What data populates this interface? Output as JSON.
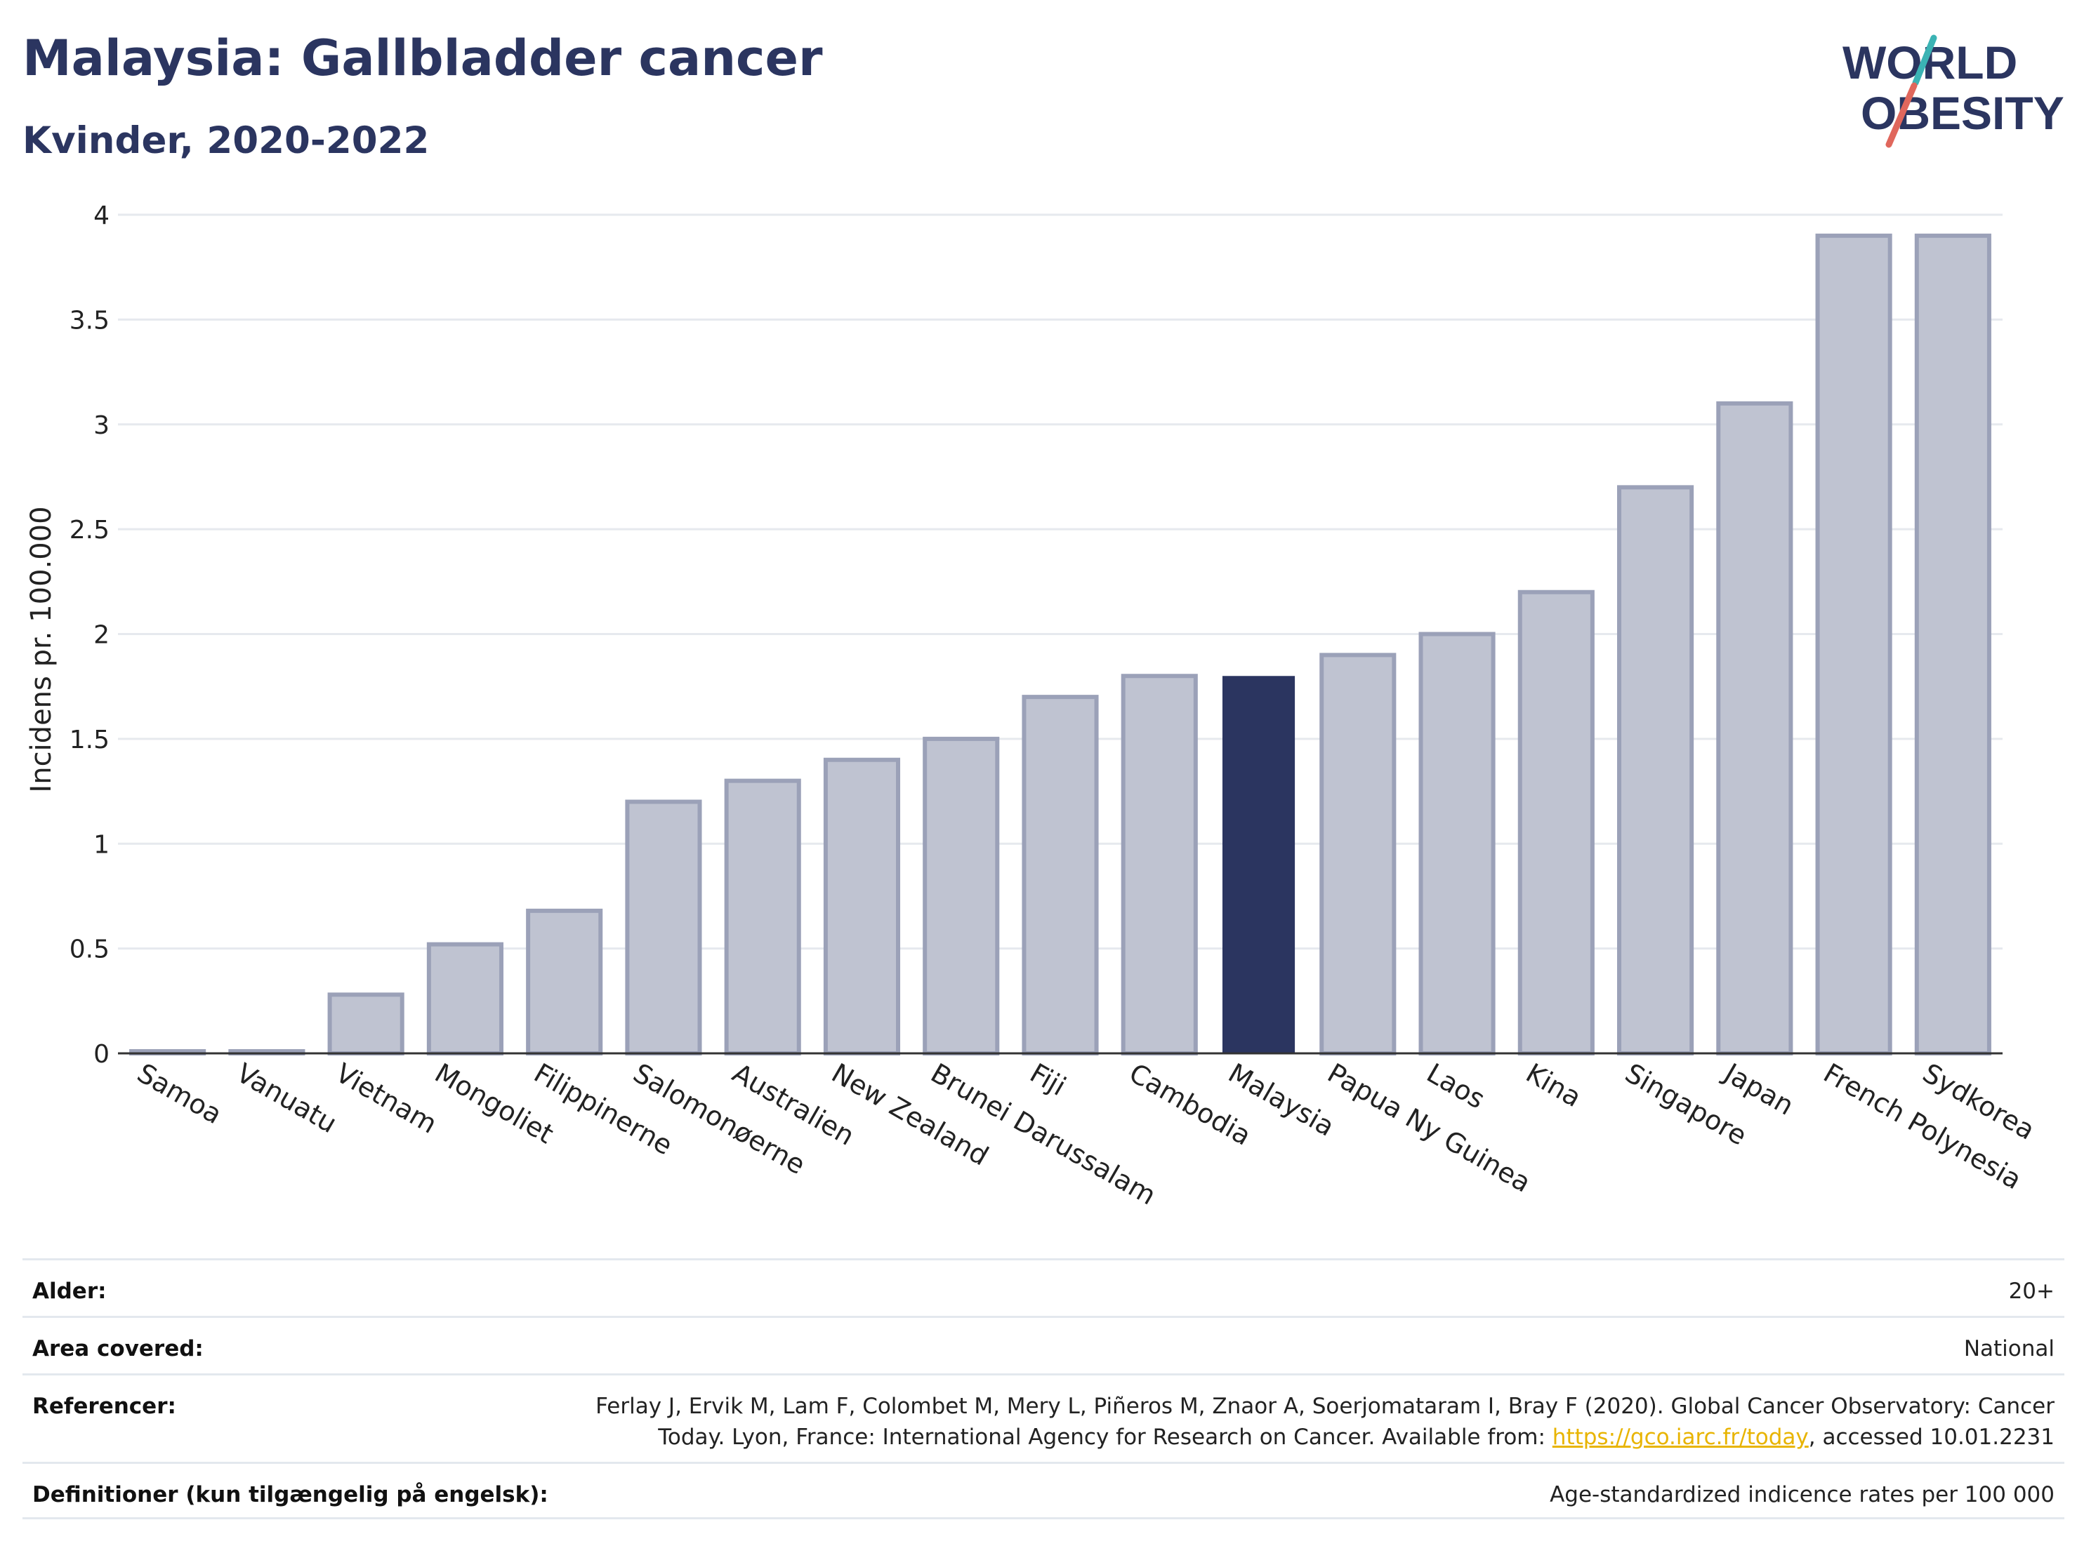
{
  "header": {
    "title": "Malaysia: Gallbladder cancer",
    "subtitle": "Kvinder, 2020-2022"
  },
  "logo": {
    "line1": "WORLD",
    "line2": "OBESITY",
    "accent_teal": "#3bb3b4",
    "accent_red": "#e0675c"
  },
  "colors": {
    "bar": "#bfc3d1",
    "bar_border": "#9ba1b8",
    "highlight": "#2b3560",
    "grid": "#e6e9ee",
    "text": "#222222"
  },
  "chart_data": {
    "type": "bar",
    "title": "Malaysia: Gallbladder cancer",
    "subtitle": "Kvinder, 2020-2022",
    "xlabel": "",
    "ylabel": "Incidens pr. 100.000",
    "ylim": [
      0,
      4
    ],
    "yticks": [
      0,
      0.5,
      1,
      1.5,
      2,
      2.5,
      3,
      3.5,
      4
    ],
    "ytick_labels": [
      "0",
      "0.5",
      "1",
      "1.5",
      "2",
      "2.5",
      "3",
      "3.5",
      "4"
    ],
    "grid": true,
    "highlight": "Malaysia",
    "categories": [
      "Samoa",
      "Vanuatu",
      "Vietnam",
      "Mongoliet",
      "Filippinerne",
      "Salomonøerne",
      "Australien",
      "New Zealand",
      "Brunei Darussalam",
      "Fiji",
      "Cambodia",
      "Malaysia",
      "Papua Ny Guinea",
      "Laos",
      "Kina",
      "Singapore",
      "Japan",
      "French Polynesia",
      "Sydkorea"
    ],
    "values": [
      0.01,
      0.01,
      0.28,
      0.52,
      0.68,
      1.2,
      1.3,
      1.4,
      1.5,
      1.7,
      1.8,
      1.8,
      1.9,
      2.0,
      2.2,
      2.7,
      3.1,
      3.9,
      3.9
    ]
  },
  "info": {
    "age_label": "Alder:",
    "age_value": "20+",
    "area_label": "Area covered:",
    "area_value": "National",
    "ref_label": "Referencer:",
    "ref_line1": "Ferlay J, Ervik M, Lam F, Colombet M, Mery L, Piñeros M, Znaor A, Soerjomataram I, Bray F (2020). Global Cancer Observatory: Cancer",
    "ref_line2_pre": "Today. Lyon, France: International Agency for Research on Cancer. Available from: ",
    "ref_link": "https://gco.iarc.fr/today",
    "ref_line2_post": ", accessed 10.01.2231",
    "def_label": "Definitioner (kun tilgængelig på engelsk):",
    "def_value": "Age-standardized indicence rates per 100 000"
  }
}
